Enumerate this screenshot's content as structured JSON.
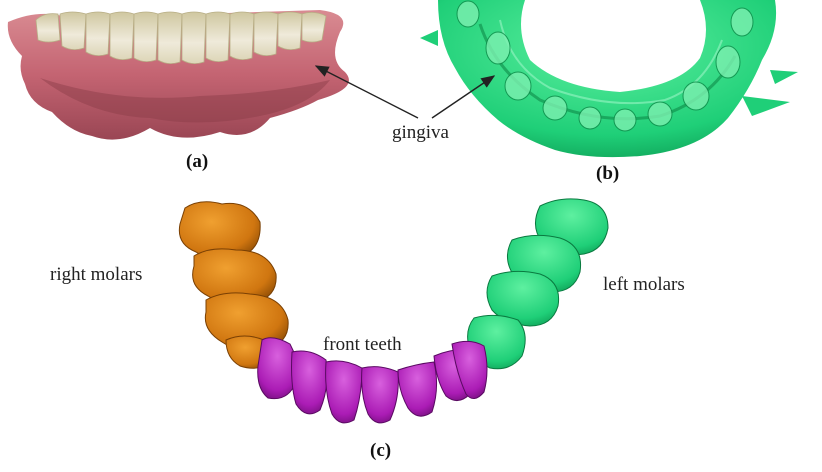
{
  "panels": {
    "a": {
      "caption": "(a)"
    },
    "b": {
      "caption": "(b)"
    },
    "c": {
      "caption": "(c)"
    }
  },
  "labels": {
    "gingiva": "gingiva",
    "right_molars": "right molars",
    "left_molars": "left molars",
    "front_teeth": "front teeth"
  },
  "colors": {
    "gum": "#c8707a",
    "gum_dark": "#8a3c48",
    "tooth": "#e8e2c4",
    "scan_green": "#1fd27a",
    "molar_orange": "#d47a10",
    "molar_green": "#21c86e",
    "front_purple": "#b020b8"
  }
}
